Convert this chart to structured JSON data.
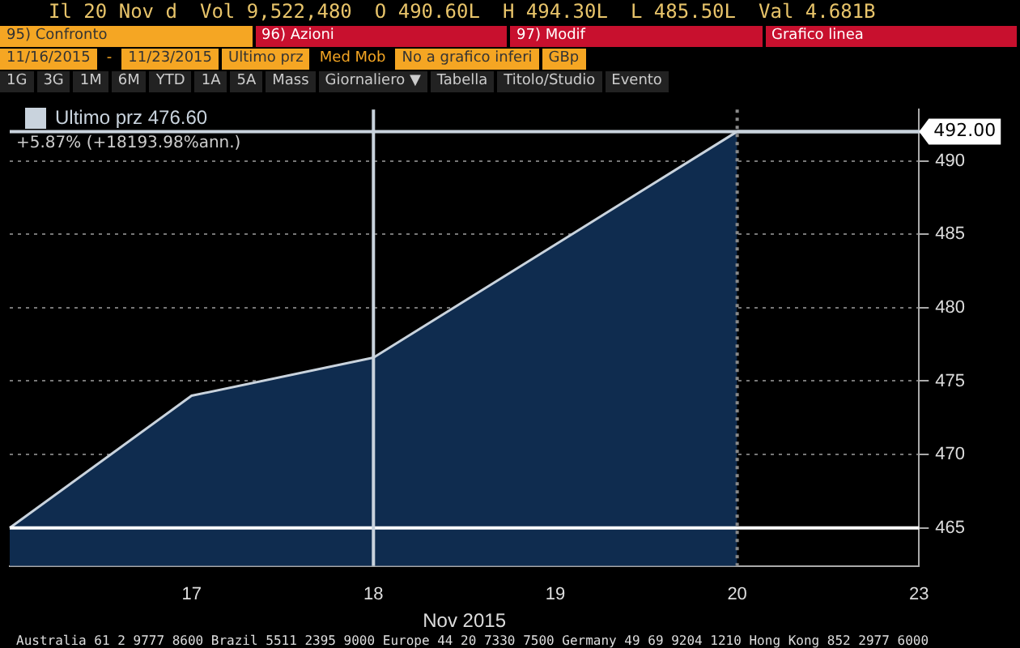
{
  "chart_data": {
    "type": "area",
    "xlabel": "Nov 2015",
    "categories": [
      null,
      "17",
      "18",
      "19",
      "20",
      "23"
    ],
    "series": [
      {
        "name": "Ultimo prz 476.60",
        "color": "#c9d3dd",
        "values": [
          465,
          474,
          476.6,
          484.3,
          492,
          null
        ]
      }
    ],
    "ylim": [
      462.4,
      493.5
    ],
    "yticks": [
      465,
      470,
      475,
      480,
      485,
      490
    ],
    "grid": "y",
    "legend": "top left",
    "marker": "none",
    "line_style": "solid",
    "ref_lines": [
      {
        "axis": "y",
        "value": 492,
        "label": "492.00",
        "color": "#c9d3dd",
        "line_style": "solid"
      },
      {
        "axis": "y",
        "value": 465,
        "label": null,
        "color": "#ffffff",
        "line_style": "solid"
      },
      {
        "axis": "x",
        "value": "18",
        "label": null,
        "color": "#c9d3dd",
        "line_style": "solid"
      },
      {
        "axis": "x",
        "value": "20",
        "label": null,
        "color": "#8a8a8a",
        "line_style": "dotted"
      }
    ],
    "annotations": [
      "Il 20 Nov d",
      "Vol 9,522,480",
      "O 490.60L",
      "H 494.30L",
      "L 485.50L",
      "Val 4.681B",
      "95) Confronto",
      "96) Azioni",
      "97) Modif",
      "Grafico linea",
      "11/16/2015",
      "-",
      "11/23/2015",
      "Ultimo prz",
      "Med Mob",
      "No a grafico inferi",
      "GBp",
      "1G",
      "3G",
      "1M",
      "6M",
      "YTD",
      "1A",
      "5A",
      "Mass",
      "Giornaliero ▼",
      "Tabella",
      "Titolo/Studio",
      "Evento",
      "+5.87% (+18193.98%ann.)",
      "Australia 61 2 9777 8600 Brazil 5511 2395 9000 Europe 44 20 7330 7500 Germany 49 69 9204 1210 Hong Kong 852 2977 6000"
    ]
  }
}
